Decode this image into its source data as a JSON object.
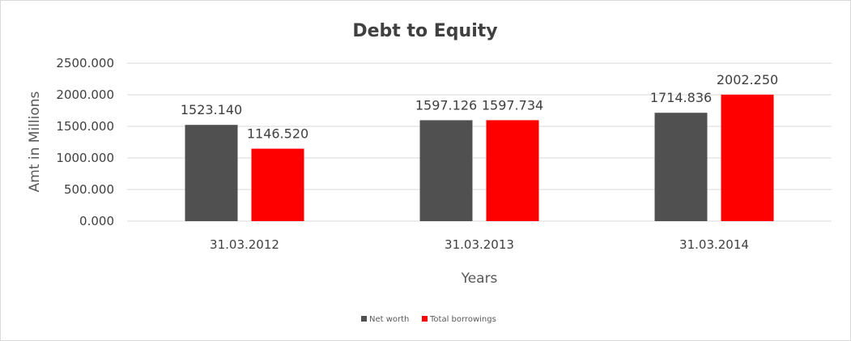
{
  "chart_data": {
    "type": "bar",
    "title": "Debt to Equity",
    "xlabel": "Years",
    "ylabel": "Amt in Millions",
    "categories": [
      "31.03.2012",
      "31.03.2013",
      "31.03.2014"
    ],
    "series": [
      {
        "name": "Net worth",
        "color": "#505050",
        "values": [
          1523.14,
          1597.126,
          1714.836
        ],
        "labels": [
          "1523.140",
          "1597.126",
          "1714.836"
        ]
      },
      {
        "name": "Total borrowings",
        "color": "#ff0000",
        "values": [
          1146.52,
          1597.734,
          2002.25
        ],
        "labels": [
          "1146.520",
          "1597.734",
          "2002.250"
        ]
      }
    ],
    "ylim": [
      0,
      2500
    ],
    "yticks": [
      "0.000",
      "500.000",
      "1000.000",
      "1500.000",
      "2000.000",
      "2500.000"
    ],
    "grid": true,
    "legend": "bottom"
  }
}
